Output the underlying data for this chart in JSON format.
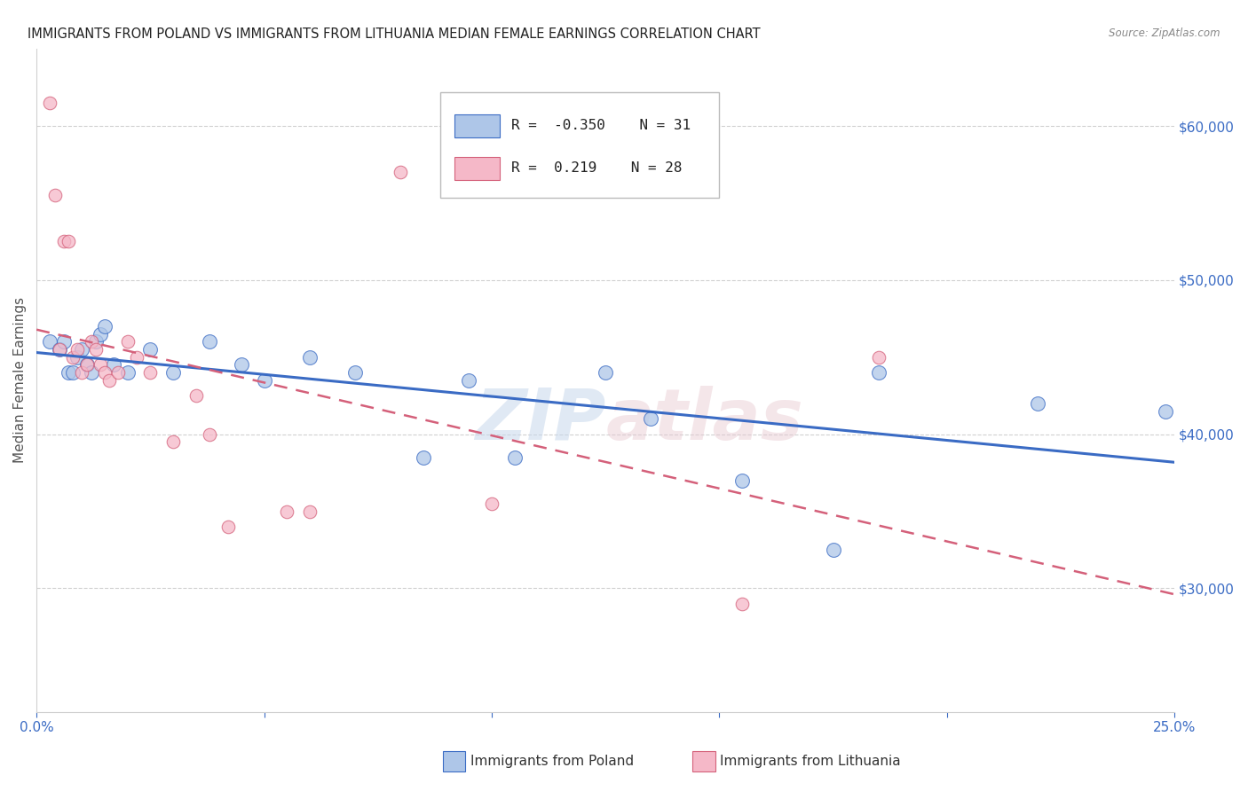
{
  "title": "IMMIGRANTS FROM POLAND VS IMMIGRANTS FROM LITHUANIA MEDIAN FEMALE EARNINGS CORRELATION CHART",
  "source": "Source: ZipAtlas.com",
  "ylabel": "Median Female Earnings",
  "xlim": [
    0.0,
    0.25
  ],
  "ylim": [
    22000,
    65000
  ],
  "yticks": [
    30000,
    40000,
    50000,
    60000
  ],
  "ytick_labels": [
    "$30,000",
    "$40,000",
    "$50,000",
    "$60,000"
  ],
  "xticks": [
    0.0,
    0.05,
    0.1,
    0.15,
    0.2,
    0.25
  ],
  "xtick_labels": [
    "0.0%",
    "",
    "",
    "",
    "",
    "25.0%"
  ],
  "poland_R": -0.35,
  "poland_N": 31,
  "lithuania_R": 0.219,
  "lithuania_N": 28,
  "poland_color": "#aec6e8",
  "lithuania_color": "#f5b8c8",
  "poland_line_color": "#3a6bc4",
  "lithuania_line_color": "#d4607a",
  "watermark": "ZIPatlas",
  "poland_scatter_x": [
    0.003,
    0.005,
    0.006,
    0.007,
    0.008,
    0.009,
    0.01,
    0.011,
    0.012,
    0.013,
    0.014,
    0.015,
    0.017,
    0.02,
    0.025,
    0.03,
    0.038,
    0.045,
    0.05,
    0.06,
    0.07,
    0.085,
    0.095,
    0.105,
    0.125,
    0.135,
    0.155,
    0.175,
    0.185,
    0.22,
    0.248
  ],
  "poland_scatter_y": [
    46000,
    45500,
    46000,
    44000,
    44000,
    45000,
    45500,
    44500,
    44000,
    46000,
    46500,
    47000,
    44500,
    44000,
    45500,
    44000,
    46000,
    44500,
    43500,
    45000,
    44000,
    38500,
    43500,
    38500,
    44000,
    41000,
    37000,
    32500,
    44000,
    42000,
    41500
  ],
  "lithuania_scatter_x": [
    0.003,
    0.004,
    0.005,
    0.006,
    0.007,
    0.008,
    0.009,
    0.01,
    0.011,
    0.012,
    0.013,
    0.014,
    0.015,
    0.016,
    0.018,
    0.02,
    0.022,
    0.025,
    0.03,
    0.035,
    0.038,
    0.042,
    0.055,
    0.06,
    0.08,
    0.1,
    0.155,
    0.185
  ],
  "lithuania_scatter_y": [
    61500,
    55500,
    45500,
    52500,
    52500,
    45000,
    45500,
    44000,
    44500,
    46000,
    45500,
    44500,
    44000,
    43500,
    44000,
    46000,
    45000,
    44000,
    39500,
    42500,
    40000,
    34000,
    35000,
    35000,
    57000,
    35500,
    29000,
    45000
  ]
}
